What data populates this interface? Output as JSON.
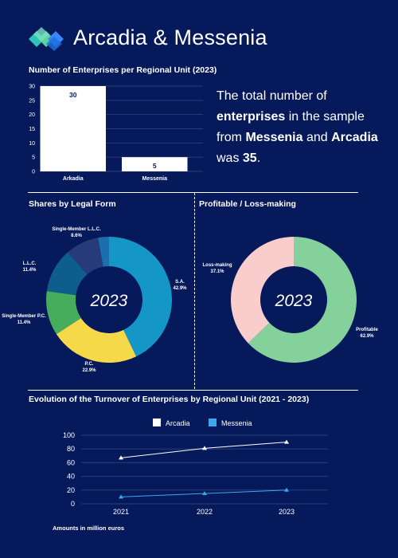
{
  "header": {
    "title": "Arcadia & Messenia",
    "logo_icon": "diamond-cluster-logo"
  },
  "summary": {
    "p1": "The total number of ",
    "b1": "enterprises",
    "p2": " in the sample from ",
    "b2": "Messenia",
    "p3": " and ",
    "b3": "Arcadia",
    "p4": " was ",
    "b4": "35",
    "p5": "."
  },
  "colors": {
    "background": "#06195a",
    "grid": "#2a3d7a",
    "sa": "#1497c6",
    "pc": "#f6d949",
    "smpc": "#46ad5d",
    "llc": "#0e5d8c",
    "smllc": "#273b7a",
    "rest": "#1b6fae",
    "profitable": "#85d19b",
    "loss": "#f8cdcb",
    "messenia_line": "#3aa8ee"
  },
  "chart_data": [
    {
      "id": "enterprises",
      "type": "bar",
      "title": "Number of Enterprises per Regional Unit (2023)",
      "categories": [
        "Arkadia",
        "Messenia"
      ],
      "values": [
        30,
        5
      ],
      "ylim": [
        0,
        30
      ],
      "yticks": [
        0,
        5,
        10,
        15,
        20,
        25,
        30
      ],
      "grid": true
    },
    {
      "id": "legal",
      "type": "pie",
      "donut": true,
      "title": "Shares by Legal Form",
      "center_label": "2023",
      "slices": [
        {
          "label": "S.A.",
          "value": 42.9,
          "display": "42.9%"
        },
        {
          "label": "P.C.",
          "value": 22.9,
          "display": "22.9%"
        },
        {
          "label": "Single-Member P.C.",
          "value": 11.4,
          "display": "11.4%"
        },
        {
          "label": "L.L.C.",
          "value": 11.4,
          "display": "11.4%"
        },
        {
          "label": "Single-Member L.L.C.",
          "value": 8.6,
          "display": "8.6%"
        },
        {
          "label": "",
          "value": 2.8,
          "display": ""
        }
      ]
    },
    {
      "id": "profit",
      "type": "pie",
      "donut": true,
      "title": "Profitable / Loss-making",
      "center_label": "2023",
      "slices": [
        {
          "label": "Profitable",
          "value": 62.9,
          "display": "62.9%"
        },
        {
          "label": "Loss-making",
          "value": 37.1,
          "display": "37.1%"
        }
      ]
    },
    {
      "id": "turnover",
      "type": "line",
      "title": "Evolution of the Turnover of Enterprises by Regional Unit (2021 - 2023)",
      "x": [
        "2021",
        "2022",
        "2023"
      ],
      "series": [
        {
          "name": "Arcadia",
          "values": [
            67,
            81,
            90
          ]
        },
        {
          "name": "Messenia",
          "values": [
            10,
            15,
            20
          ]
        }
      ],
      "ylim": [
        0,
        100
      ],
      "yticks": [
        0,
        20,
        40,
        60,
        80,
        100
      ],
      "grid": true,
      "legend": "top-center",
      "note": "Amounts in million euros"
    }
  ]
}
